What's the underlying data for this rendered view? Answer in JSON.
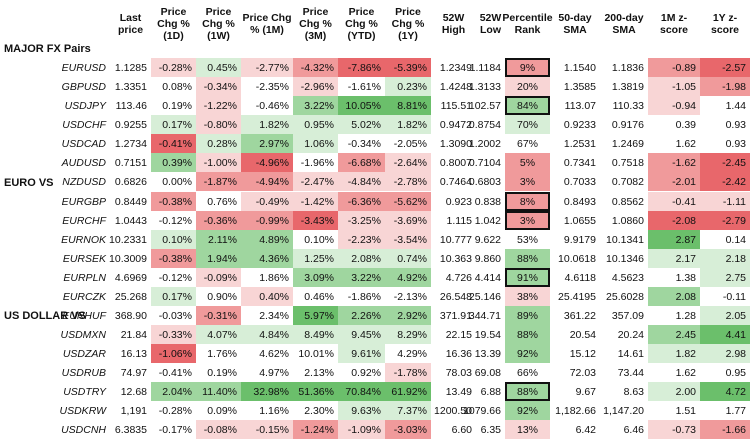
{
  "colors": {
    "pos_strong": "#6bbf6b",
    "pos_mid": "#9fd69f",
    "pos_light": "#d7eed7",
    "neg_strong": "#e8676b",
    "neg_mid": "#f09a9b",
    "neg_light": "#f8d5d5",
    "none": "#ffffff"
  },
  "headers": [
    "Last price",
    "Price Chg % (1D)",
    "Price Chg % (1W)",
    "Price Chg % (1M)",
    "Price Chg % (3M)",
    "Price Chg % (YTD)",
    "Price Chg % (1Y)",
    "52W High",
    "52W Low",
    "Percentile Rank",
    "50-day SMA",
    "200-day SMA",
    "1M z-score",
    "1Y z-score"
  ],
  "sections": [
    {
      "title": "MAJOR FX Pairs",
      "rows": [
        {
          "pair": "EURUSD",
          "values": [
            "1.1285",
            "-0.28%",
            "0.45%",
            "-2.77%",
            "-4.32%",
            "-7.86%",
            "-5.39%",
            "1.2349",
            "1.1184",
            "9%",
            "1.1540",
            "1.1836",
            "-0.89",
            "-2.57"
          ],
          "shades": [
            "",
            "nl",
            "pl",
            "nl",
            "nm",
            "ns",
            "ns",
            "",
            "",
            "nm",
            "",
            "",
            "nm",
            "ns"
          ],
          "box": [
            9
          ]
        },
        {
          "pair": "GBPUSD",
          "values": [
            "1.3351",
            "0.08%",
            "-0.34%",
            "-2.35%",
            "-2.96%",
            "-1.61%",
            "0.23%",
            "1.4248",
            "1.3133",
            "20%",
            "1.3585",
            "1.3819",
            "-1.05",
            "-1.98"
          ],
          "shades": [
            "",
            "",
            "nl",
            "",
            "nl",
            "",
            "pl",
            "",
            "",
            "nl",
            "",
            "",
            "nl",
            "nm"
          ],
          "box": []
        },
        {
          "pair": "USDJPY",
          "values": [
            "113.46",
            "0.19%",
            "-1.22%",
            "-0.46%",
            "3.22%",
            "10.05%",
            "8.81%",
            "115.51",
            "102.57",
            "84%",
            "113.07",
            "110.33",
            "-0.94",
            "1.44"
          ],
          "shades": [
            "",
            "",
            "nl",
            "",
            "pm",
            "ps",
            "ps",
            "",
            "",
            "pm",
            "",
            "",
            "nl",
            ""
          ],
          "box": [
            9
          ]
        },
        {
          "pair": "USDCHF",
          "values": [
            "0.9255",
            "0.17%",
            "-0.80%",
            "1.82%",
            "0.95%",
            "5.02%",
            "1.82%",
            "0.9472",
            "0.8754",
            "70%",
            "0.9233",
            "0.9176",
            "0.39",
            "0.93"
          ],
          "shades": [
            "",
            "pl",
            "nl",
            "pl",
            "pl",
            "pl",
            "pl",
            "",
            "",
            "pl",
            "",
            "",
            "",
            ""
          ],
          "box": []
        },
        {
          "pair": "USDCAD",
          "values": [
            "1.2734",
            "-0.41%",
            "0.28%",
            "2.97%",
            "1.06%",
            "-0.34%",
            "-2.05%",
            "1.3090",
            "1.2002",
            "67%",
            "1.2531",
            "1.2469",
            "1.62",
            "0.93"
          ],
          "shades": [
            "",
            "ns",
            "pl",
            "pm",
            "pl",
            "",
            "",
            "",
            "",
            "",
            "",
            "",
            "",
            ""
          ],
          "box": []
        },
        {
          "pair": "AUDUSD",
          "values": [
            "0.7151",
            "0.39%",
            "-1.00%",
            "-4.96%",
            "-1.96%",
            "-6.68%",
            "-2.64%",
            "0.8007",
            "0.7104",
            "5%",
            "0.7341",
            "0.7518",
            "-1.62",
            "-2.45"
          ],
          "shades": [
            "",
            "pm",
            "nl",
            "ns",
            "",
            "nm",
            "nl",
            "",
            "",
            "nm",
            "",
            "",
            "nm",
            "ns"
          ],
          "box": []
        },
        {
          "pair": "NZDUSD",
          "values": [
            "0.6826",
            "0.00%",
            "-1.87%",
            "-4.94%",
            "-2.47%",
            "-4.84%",
            "-2.78%",
            "0.7464",
            "0.6803",
            "3%",
            "0.7033",
            "0.7082",
            "-2.01",
            "-2.42"
          ],
          "shades": [
            "",
            "",
            "nm",
            "nm",
            "nl",
            "nl",
            "nl",
            "",
            "",
            "nm",
            "",
            "",
            "nm",
            "ns"
          ],
          "box": []
        }
      ]
    },
    {
      "title": "EURO VS",
      "rows": [
        {
          "pair": "EURGBP",
          "values": [
            "0.8449",
            "-0.38%",
            "0.76%",
            "-0.49%",
            "-1.42%",
            "-6.36%",
            "-5.62%",
            "0.923",
            "0.838",
            "8%",
            "0.8493",
            "0.8562",
            "-0.41",
            "-1.11"
          ],
          "shades": [
            "",
            "nm",
            "",
            "nl",
            "nl",
            "nm",
            "nm",
            "",
            "",
            "nm",
            "",
            "",
            "nl",
            "nl"
          ],
          "box": [
            9
          ]
        },
        {
          "pair": "EURCHF",
          "values": [
            "1.0443",
            "-0.12%",
            "-0.36%",
            "-0.99%",
            "-3.43%",
            "-3.25%",
            "-3.69%",
            "1.115",
            "1.042",
            "3%",
            "1.0655",
            "1.0860",
            "-2.08",
            "-2.79"
          ],
          "shades": [
            "",
            "",
            "nm",
            "nm",
            "ns",
            "nl",
            "nl",
            "",
            "",
            "nm",
            "",
            "",
            "ns",
            "ns"
          ],
          "box": [
            9
          ]
        },
        {
          "pair": "EURNOK",
          "values": [
            "10.2331",
            "0.10%",
            "2.11%",
            "4.89%",
            "0.10%",
            "-2.23%",
            "-3.54%",
            "10.777",
            "9.622",
            "53%",
            "9.9179",
            "10.1341",
            "2.87",
            "0.14"
          ],
          "shades": [
            "",
            "pl",
            "pm",
            "pm",
            "",
            "nl",
            "nl",
            "",
            "",
            "",
            "",
            "",
            "ps",
            ""
          ],
          "box": []
        },
        {
          "pair": "EURSEK",
          "values": [
            "10.3009",
            "-0.38%",
            "1.94%",
            "4.36%",
            "1.25%",
            "2.08%",
            "0.74%",
            "10.363",
            "9.860",
            "88%",
            "10.0618",
            "10.1346",
            "2.17",
            "2.18"
          ],
          "shades": [
            "",
            "nm",
            "pm",
            "pm",
            "pl",
            "pl",
            "pl",
            "",
            "",
            "pm",
            "",
            "",
            "pl",
            "pl"
          ],
          "box": []
        },
        {
          "pair": "EURPLN",
          "values": [
            "4.6969",
            "-0.12%",
            "-0.09%",
            "1.86%",
            "3.09%",
            "3.22%",
            "4.92%",
            "4.726",
            "4.414",
            "91%",
            "4.6118",
            "4.5623",
            "1.38",
            "2.75"
          ],
          "shades": [
            "",
            "",
            "nl",
            "",
            "pm",
            "pm",
            "pm",
            "",
            "",
            "pm",
            "",
            "",
            "",
            "pl"
          ],
          "box": [
            9
          ]
        },
        {
          "pair": "EURCZK",
          "values": [
            "25.268",
            "0.17%",
            "0.90%",
            "0.40%",
            "0.46%",
            "-1.86%",
            "-2.13%",
            "26.548",
            "25.146",
            "38%",
            "25.4195",
            "25.6028",
            "2.08",
            "-0.11"
          ],
          "shades": [
            "",
            "pl",
            "",
            "nl",
            "",
            "",
            "",
            "",
            "",
            "nl",
            "",
            "",
            "pm",
            ""
          ],
          "box": []
        },
        {
          "pair": "EURHUF",
          "values": [
            "368.90",
            "-0.03%",
            "-0.31%",
            "2.34%",
            "5.97%",
            "2.26%",
            "2.92%",
            "371.91",
            "344.71",
            "89%",
            "361.22",
            "357.09",
            "1.28",
            "2.05"
          ],
          "shades": [
            "",
            "",
            "nm",
            "",
            "ps",
            "pm",
            "pm",
            "",
            "",
            "pm",
            "",
            "",
            "",
            "pl"
          ],
          "box": []
        }
      ]
    },
    {
      "title": "US DOLLAR VS",
      "rows": [
        {
          "pair": "USDMXN",
          "values": [
            "21.84",
            "-0.33%",
            "4.07%",
            "4.84%",
            "8.49%",
            "9.45%",
            "8.29%",
            "22.15",
            "19.54",
            "88%",
            "20.54",
            "20.24",
            "2.45",
            "4.41"
          ],
          "shades": [
            "",
            "nl",
            "pl",
            "pl",
            "pl",
            "pl",
            "pl",
            "",
            "",
            "pm",
            "",
            "",
            "pm",
            "ps"
          ],
          "box": []
        },
        {
          "pair": "USDZAR",
          "values": [
            "16.13",
            "-1.06%",
            "1.76%",
            "4.62%",
            "10.01%",
            "9.61%",
            "4.29%",
            "16.36",
            "13.39",
            "92%",
            "15.12",
            "14.61",
            "1.82",
            "2.98"
          ],
          "shades": [
            "",
            "ns",
            "",
            "",
            "",
            "pl",
            "",
            "",
            "",
            "pm",
            "",
            "",
            "pl",
            "pl"
          ],
          "box": []
        },
        {
          "pair": "USDRUB",
          "values": [
            "74.97",
            "-0.41%",
            "0.19%",
            "4.97%",
            "2.13%",
            "0.92%",
            "-1.78%",
            "78.03",
            "69.08",
            "66%",
            "72.03",
            "73.44",
            "1.62",
            "0.95"
          ],
          "shades": [
            "",
            "",
            "",
            "",
            "",
            "",
            "nl",
            "",
            "",
            "",
            "",
            "",
            "",
            ""
          ],
          "box": []
        },
        {
          "pair": "USDTRY",
          "values": [
            "12.68",
            "2.04%",
            "11.40%",
            "32.98%",
            "51.36%",
            "70.84%",
            "61.92%",
            "13.49",
            "6.88",
            "88%",
            "9.67",
            "8.63",
            "2.00",
            "4.72"
          ],
          "shades": [
            "",
            "pm",
            "pm",
            "ps",
            "ps",
            "ps",
            "ps",
            "",
            "",
            "pm",
            "",
            "",
            "pl",
            "ps"
          ],
          "box": [
            9
          ]
        },
        {
          "pair": "USDKRW",
          "values": [
            "1,191",
            "-0.28%",
            "0.09%",
            "1.16%",
            "2.30%",
            "9.63%",
            "7.37%",
            "1200.50",
            "1079.66",
            "92%",
            "1,182.66",
            "1,147.20",
            "1.51",
            "1.77"
          ],
          "shades": [
            "",
            "",
            "",
            "",
            "",
            "pl",
            "pl",
            "",
            "",
            "pm",
            "",
            "",
            "",
            ""
          ],
          "box": []
        },
        {
          "pair": "USDCNH",
          "values": [
            "6.3835",
            "-0.17%",
            "-0.08%",
            "-0.15%",
            "-1.24%",
            "-1.09%",
            "-3.03%",
            "6.60",
            "6.35",
            "13%",
            "6.42",
            "6.46",
            "-0.73",
            "-1.66"
          ],
          "shades": [
            "",
            "",
            "nl",
            "nl",
            "nm",
            "nl",
            "nm",
            "",
            "",
            "nl",
            "",
            "",
            "nl",
            "nm"
          ],
          "box": []
        }
      ]
    }
  ]
}
